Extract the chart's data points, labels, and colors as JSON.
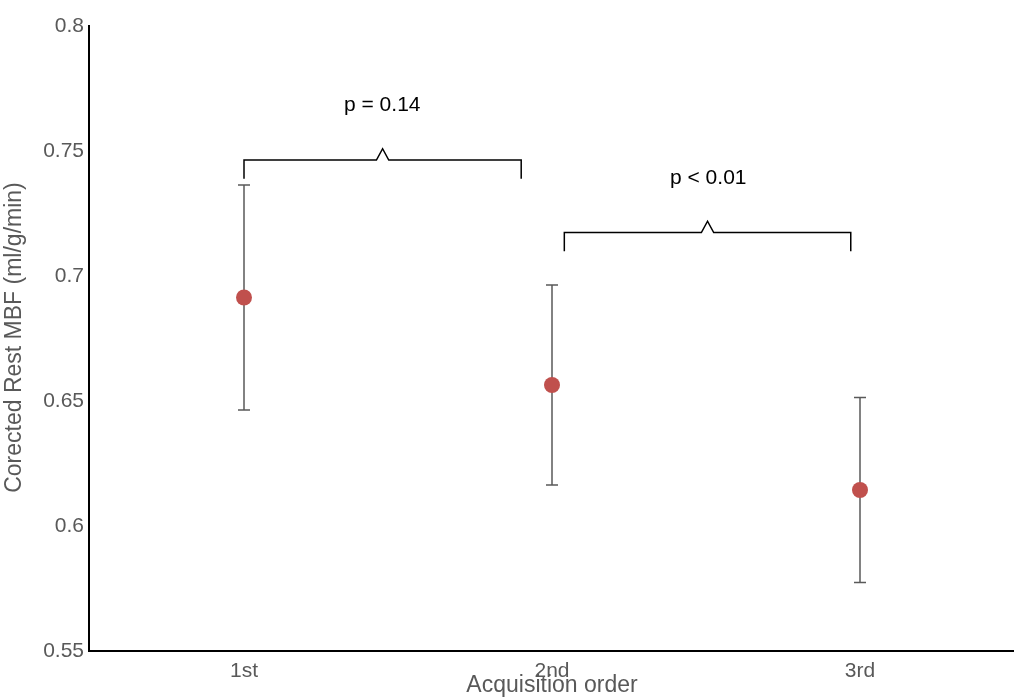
{
  "chart_data": {
    "type": "scatter",
    "xlabel": "Acquisition order",
    "ylabel": "Corected Rest MBF (ml/g/min)",
    "categories": [
      "1st",
      "2nd",
      "3rd"
    ],
    "series": [
      {
        "color": "#c0504d",
        "values": [
          0.691,
          0.656,
          0.614
        ],
        "errors": [
          0.045,
          0.04,
          0.037
        ]
      }
    ],
    "ylim": [
      0.55,
      0.8
    ],
    "yticks": [
      0.55,
      0.6,
      0.65,
      0.7,
      0.75,
      0.8
    ],
    "marker": "circle",
    "annotations": [
      "p = 0.14",
      "p < 0.01"
    ]
  }
}
